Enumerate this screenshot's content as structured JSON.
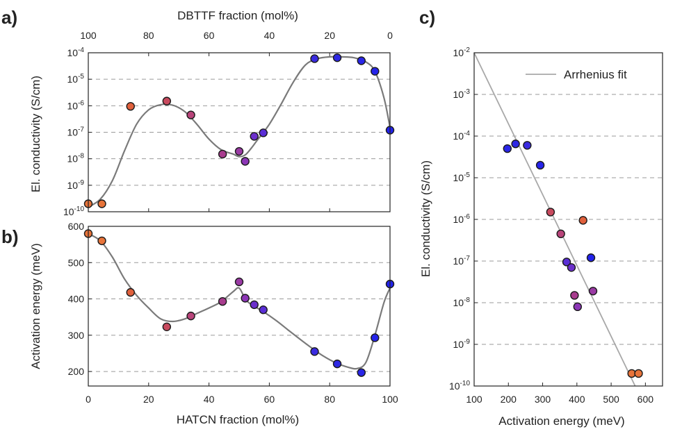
{
  "figure": {
    "panels": [
      "a)",
      "b)",
      "c)"
    ]
  },
  "chart_data": [
    {
      "id": "a",
      "type": "scatter",
      "title": "",
      "xlabel": "HATCN fraction (mol%)",
      "top_xlabel": "DBTTF fraction (mol%)",
      "ylabel": "El. conductivity (S/cm)",
      "xlim": [
        0,
        100
      ],
      "top_xlim": [
        100,
        0
      ],
      "ylim": [
        1e-10,
        0.0001
      ],
      "yscale": "log",
      "top_xticks": [
        "100",
        "80",
        "60",
        "40",
        "20",
        "0"
      ],
      "yticks": [
        "10",
        "10",
        "10",
        "10",
        "10",
        "10",
        "10"
      ],
      "ytick_exponents": [
        "-10",
        "-9",
        "-8",
        "-7",
        "-6",
        "-5",
        "-4"
      ],
      "grid": "dashed horizontal",
      "points": [
        {
          "x": 0,
          "y": 2e-10,
          "color": "#e8743a"
        },
        {
          "x": 4.5,
          "y": 2e-10,
          "color": "#e8743a"
        },
        {
          "x": 14,
          "y": 9.5e-07,
          "color": "#e0603c"
        },
        {
          "x": 26,
          "y": 1.5e-06,
          "color": "#c84a5e"
        },
        {
          "x": 34,
          "y": 4.5e-07,
          "color": "#b8447a"
        },
        {
          "x": 44.5,
          "y": 1.5e-08,
          "color": "#a83c8e"
        },
        {
          "x": 50,
          "y": 1.9e-08,
          "color": "#9a3aa4"
        },
        {
          "x": 52,
          "y": 8e-09,
          "color": "#8c36b6"
        },
        {
          "x": 55,
          "y": 7e-08,
          "color": "#6c30cc"
        },
        {
          "x": 58,
          "y": 9.5e-08,
          "color": "#5a2ed6"
        },
        {
          "x": 75,
          "y": 6e-05,
          "color": "#3a2be0"
        },
        {
          "x": 82.5,
          "y": 6.5e-05,
          "color": "#2e28e4"
        },
        {
          "x": 90.5,
          "y": 5e-05,
          "color": "#2a26e8"
        },
        {
          "x": 95,
          "y": 2e-05,
          "color": "#2624ea"
        },
        {
          "x": 100,
          "y": 1.2e-07,
          "color": "#2222ec"
        }
      ],
      "fit_curve": {
        "x": [
          0,
          4,
          8,
          12,
          16,
          20,
          24,
          28,
          32,
          36,
          40,
          44,
          48,
          50,
          52,
          54,
          56,
          60,
          64,
          68,
          72,
          76,
          80,
          84,
          88,
          92,
          95,
          98,
          100
        ],
        "y": [
          1.5e-10,
          3e-10,
          1.5e-09,
          2e-08,
          2e-07,
          7e-07,
          1.1e-06,
          1.05e-06,
          6e-07,
          2e-07,
          5.5e-08,
          2.2e-08,
          1.5e-08,
          1.2e-08,
          1.4e-08,
          2.5e-08,
          5e-08,
          2e-07,
          1.2e-06,
          8e-06,
          3.5e-05,
          6e-05,
          7e-05,
          7e-05,
          6.5e-05,
          4.5e-05,
          2e-05,
          2e-06,
          1.5e-07
        ]
      }
    },
    {
      "id": "b",
      "type": "scatter",
      "title": "",
      "xlabel": "HATCN fraction (mol%)",
      "ylabel": "Activation energy (meV)",
      "xlim": [
        0,
        100
      ],
      "ylim": [
        160,
        600
      ],
      "xticks": [
        "0",
        "20",
        "40",
        "60",
        "80",
        "100"
      ],
      "yticks": [
        "200",
        "300",
        "400",
        "500",
        "600"
      ],
      "grid": "dashed horizontal",
      "points": [
        {
          "x": 0,
          "y": 580,
          "color": "#e8743a"
        },
        {
          "x": 4.5,
          "y": 560,
          "color": "#e8743a"
        },
        {
          "x": 14,
          "y": 418,
          "color": "#e0603c"
        },
        {
          "x": 26,
          "y": 323,
          "color": "#c84a5e"
        },
        {
          "x": 34,
          "y": 353,
          "color": "#b8447a"
        },
        {
          "x": 44.5,
          "y": 393,
          "color": "#a83c8e"
        },
        {
          "x": 50,
          "y": 447,
          "color": "#9a3aa4"
        },
        {
          "x": 52,
          "y": 402,
          "color": "#8c36b6"
        },
        {
          "x": 55,
          "y": 384,
          "color": "#6c30cc"
        },
        {
          "x": 58,
          "y": 370,
          "color": "#5a2ed6"
        },
        {
          "x": 75,
          "y": 255,
          "color": "#3a2be0"
        },
        {
          "x": 82.5,
          "y": 221,
          "color": "#2e28e4"
        },
        {
          "x": 90.5,
          "y": 197,
          "color": "#2a26e8"
        },
        {
          "x": 95,
          "y": 293,
          "color": "#2624ea"
        },
        {
          "x": 100,
          "y": 441,
          "color": "#2222ec"
        }
      ],
      "fit_curve": {
        "x": [
          0,
          4,
          8,
          12,
          16,
          20,
          24,
          28,
          32,
          36,
          40,
          44,
          48,
          50,
          52,
          54,
          58,
          62,
          66,
          70,
          74,
          78,
          82,
          86,
          89,
          92,
          95,
          98,
          100
        ],
        "y": [
          580,
          560,
          515,
          455,
          410,
          375,
          345,
          338,
          345,
          360,
          375,
          392,
          420,
          430,
          400,
          385,
          365,
          342,
          316,
          290,
          265,
          242,
          224,
          212,
          208,
          225,
          300,
          390,
          430
        ]
      }
    },
    {
      "id": "c",
      "type": "scatter",
      "title": "",
      "xlabel": "Activation energy (meV)",
      "ylabel": "El. conductivity (S/cm)",
      "xlim": [
        100,
        650
      ],
      "ylim": [
        1e-10,
        0.01
      ],
      "yscale": "log",
      "xticks": [
        "100",
        "200",
        "300",
        "400",
        "500",
        "600"
      ],
      "yticks": [
        "10",
        "10",
        "10",
        "10",
        "10",
        "10",
        "10",
        "10",
        "10"
      ],
      "ytick_exponents": [
        "-10",
        "-9",
        "-8",
        "-7",
        "-6",
        "-5",
        "-4",
        "-3",
        "-2"
      ],
      "grid": "dashed horizontal",
      "legend": {
        "label": "Arrhenius fit",
        "placement": "top-right"
      },
      "fit_line": {
        "x": [
          100,
          570
        ],
        "y": [
          0.01,
          1e-10
        ]
      },
      "points": [
        {
          "x": 197,
          "y": 5e-05,
          "color": "#2a26e8"
        },
        {
          "x": 221,
          "y": 6.5e-05,
          "color": "#2e28e4"
        },
        {
          "x": 255,
          "y": 6e-05,
          "color": "#3a2be0"
        },
        {
          "x": 293,
          "y": 2e-05,
          "color": "#2624ea"
        },
        {
          "x": 323,
          "y": 1.5e-06,
          "color": "#c84a5e"
        },
        {
          "x": 353,
          "y": 4.5e-07,
          "color": "#b8447a"
        },
        {
          "x": 370,
          "y": 9.5e-08,
          "color": "#5a2ed6"
        },
        {
          "x": 384,
          "y": 7e-08,
          "color": "#6c30cc"
        },
        {
          "x": 393,
          "y": 1.5e-08,
          "color": "#a83c8e"
        },
        {
          "x": 402,
          "y": 8e-09,
          "color": "#8c36b6"
        },
        {
          "x": 418,
          "y": 9.5e-07,
          "color": "#e0603c"
        },
        {
          "x": 441,
          "y": 1.2e-07,
          "color": "#2222ec"
        },
        {
          "x": 447,
          "y": 1.9e-08,
          "color": "#9a3aa4"
        },
        {
          "x": 560,
          "y": 2e-10,
          "color": "#e8743a"
        },
        {
          "x": 580,
          "y": 2e-10,
          "color": "#e8743a"
        }
      ]
    }
  ]
}
